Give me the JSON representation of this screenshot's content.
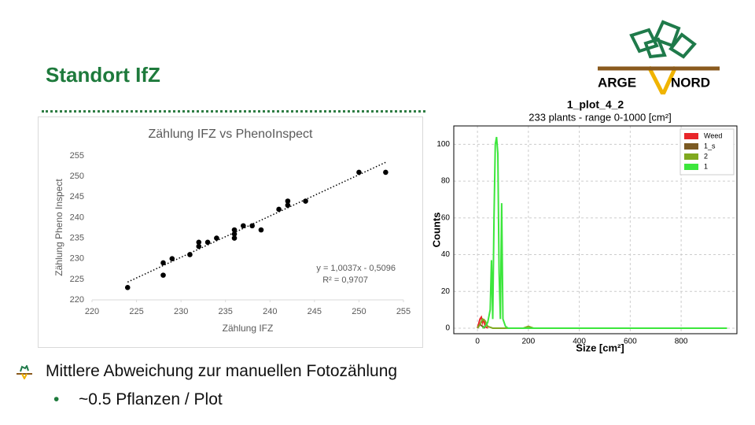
{
  "slide": {
    "title": "Standort IfZ",
    "logo": {
      "left": "ARGE",
      "right": "NORD"
    },
    "bullets": [
      {
        "text": "Mittlere Abweichung zur manuellen Fotozählung",
        "sub": [
          "~0.5 Pflanzen / Plot"
        ]
      }
    ]
  },
  "chart_data": [
    {
      "type": "scatter",
      "title": "Zählung IFZ vs PhenoInspect",
      "x_label": "Zählung IFZ",
      "y_label": "Zählung Pheno Inspect",
      "x": [
        224,
        228,
        228,
        229,
        231,
        232,
        232,
        233,
        234,
        236,
        236,
        236,
        237,
        238,
        239,
        241,
        242,
        242,
        244,
        250,
        253
      ],
      "values": [
        223,
        226,
        229,
        230,
        231,
        233,
        234,
        234,
        235,
        235,
        236,
        237,
        238,
        238,
        237,
        242,
        243,
        244,
        244,
        251,
        251
      ],
      "color": "#000000",
      "xlim": [
        220,
        255
      ],
      "ylim": [
        220,
        255
      ],
      "xticks": [
        220,
        225,
        230,
        235,
        240,
        245,
        250,
        255
      ],
      "yticks": [
        220,
        225,
        230,
        235,
        240,
        245,
        250,
        255
      ],
      "trendline": {
        "slope": 1.0037,
        "intercept": -0.5096,
        "label": "y = 1,0037x - 0,5096",
        "r2_label": "R² = 0,9707"
      }
    },
    {
      "type": "line",
      "title": "1_plot_4_2",
      "subtitle": "233 plants - range 0-1000 [cm²]",
      "x_label": "Size [cm²]",
      "y_label": "Counts",
      "xlim": [
        -93,
        1019
      ],
      "ylim": [
        -3,
        110
      ],
      "xticks": [
        0,
        200,
        400,
        600,
        800
      ],
      "yticks": [
        0,
        20,
        40,
        60,
        80,
        100
      ],
      "grid": true,
      "legend": "upper right",
      "series": [
        {
          "name": "Weed",
          "color": "#e8262a",
          "x": [
            0,
            10,
            15,
            20,
            25,
            30,
            40
          ],
          "values": [
            0,
            5,
            6,
            3,
            5,
            1,
            0
          ]
        },
        {
          "name": "1_s",
          "color": "#7b5a23",
          "x": [
            0,
            10,
            20,
            30
          ],
          "values": [
            0,
            2,
            1,
            0
          ]
        },
        {
          "name": "2",
          "color": "#7fa91f",
          "x": [
            0,
            10,
            20,
            30,
            40,
            60,
            180,
            200,
            220,
            300,
            980
          ],
          "values": [
            0,
            2,
            5,
            4,
            1,
            0,
            0,
            1,
            0,
            0,
            0
          ]
        },
        {
          "name": "1",
          "color": "#3ce63c",
          "x": [
            20,
            30,
            40,
            50,
            55,
            60,
            65,
            70,
            75,
            80,
            85,
            90,
            95,
            100,
            110,
            120,
            200,
            400,
            600,
            800,
            980
          ],
          "values": [
            0,
            1,
            3,
            10,
            37,
            5,
            60,
            100,
            104,
            95,
            30,
            5,
            68,
            5,
            1,
            0,
            0,
            0,
            0,
            0,
            0
          ]
        }
      ]
    }
  ]
}
